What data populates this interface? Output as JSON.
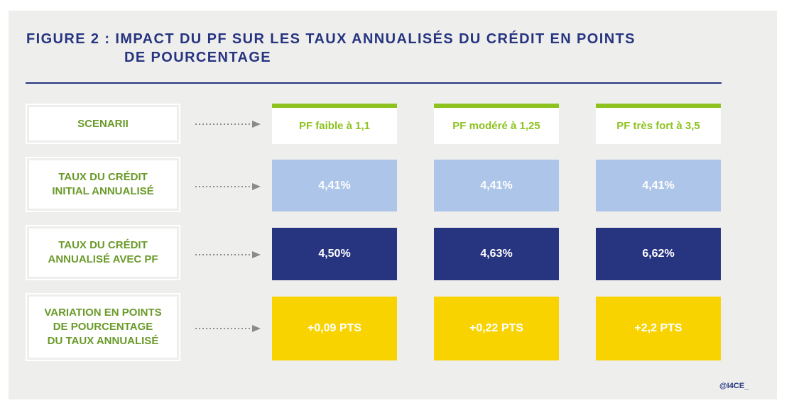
{
  "figure": {
    "title_line1": "FIGURE 2 : IMPACT DU PF SUR LES TAUX ANNUALISÉS DU CRÉDIT EN POINTS",
    "title_line2": "DE POURCENTAGE",
    "credit": "@I4CE_"
  },
  "rows": [
    {
      "key": "scenarii",
      "label": "SCENARII",
      "cells": [
        "PF faible à 1,1",
        "PF modéré à 1,25",
        "PF très fort à 3,5"
      ]
    },
    {
      "key": "initial",
      "label": "TAUX DU CRÉDIT\nINITIAL ANNUALISÉ",
      "cells": [
        "4,41%",
        "4,41%",
        "4,41%"
      ]
    },
    {
      "key": "avecpf",
      "label": "TAUX DU CRÉDIT\nANNUALISÉ AVEC PF",
      "cells": [
        "4,50%",
        "4,63%",
        "6,62%"
      ]
    },
    {
      "key": "variation",
      "label": "VARIATION EN POINTS\nDE POURCENTAGE\nDU TAUX ANNUALISÉ",
      "cells": [
        "+0,09 PTS",
        "+0,22 PTS",
        "+2,2 PTS"
      ]
    }
  ],
  "colors": {
    "navy": "#273480",
    "green": "#8dc21f",
    "label_green": "#6a9a2a",
    "light_blue": "#adc5e8",
    "yellow": "#f9d300",
    "background": "#eeeeec"
  }
}
